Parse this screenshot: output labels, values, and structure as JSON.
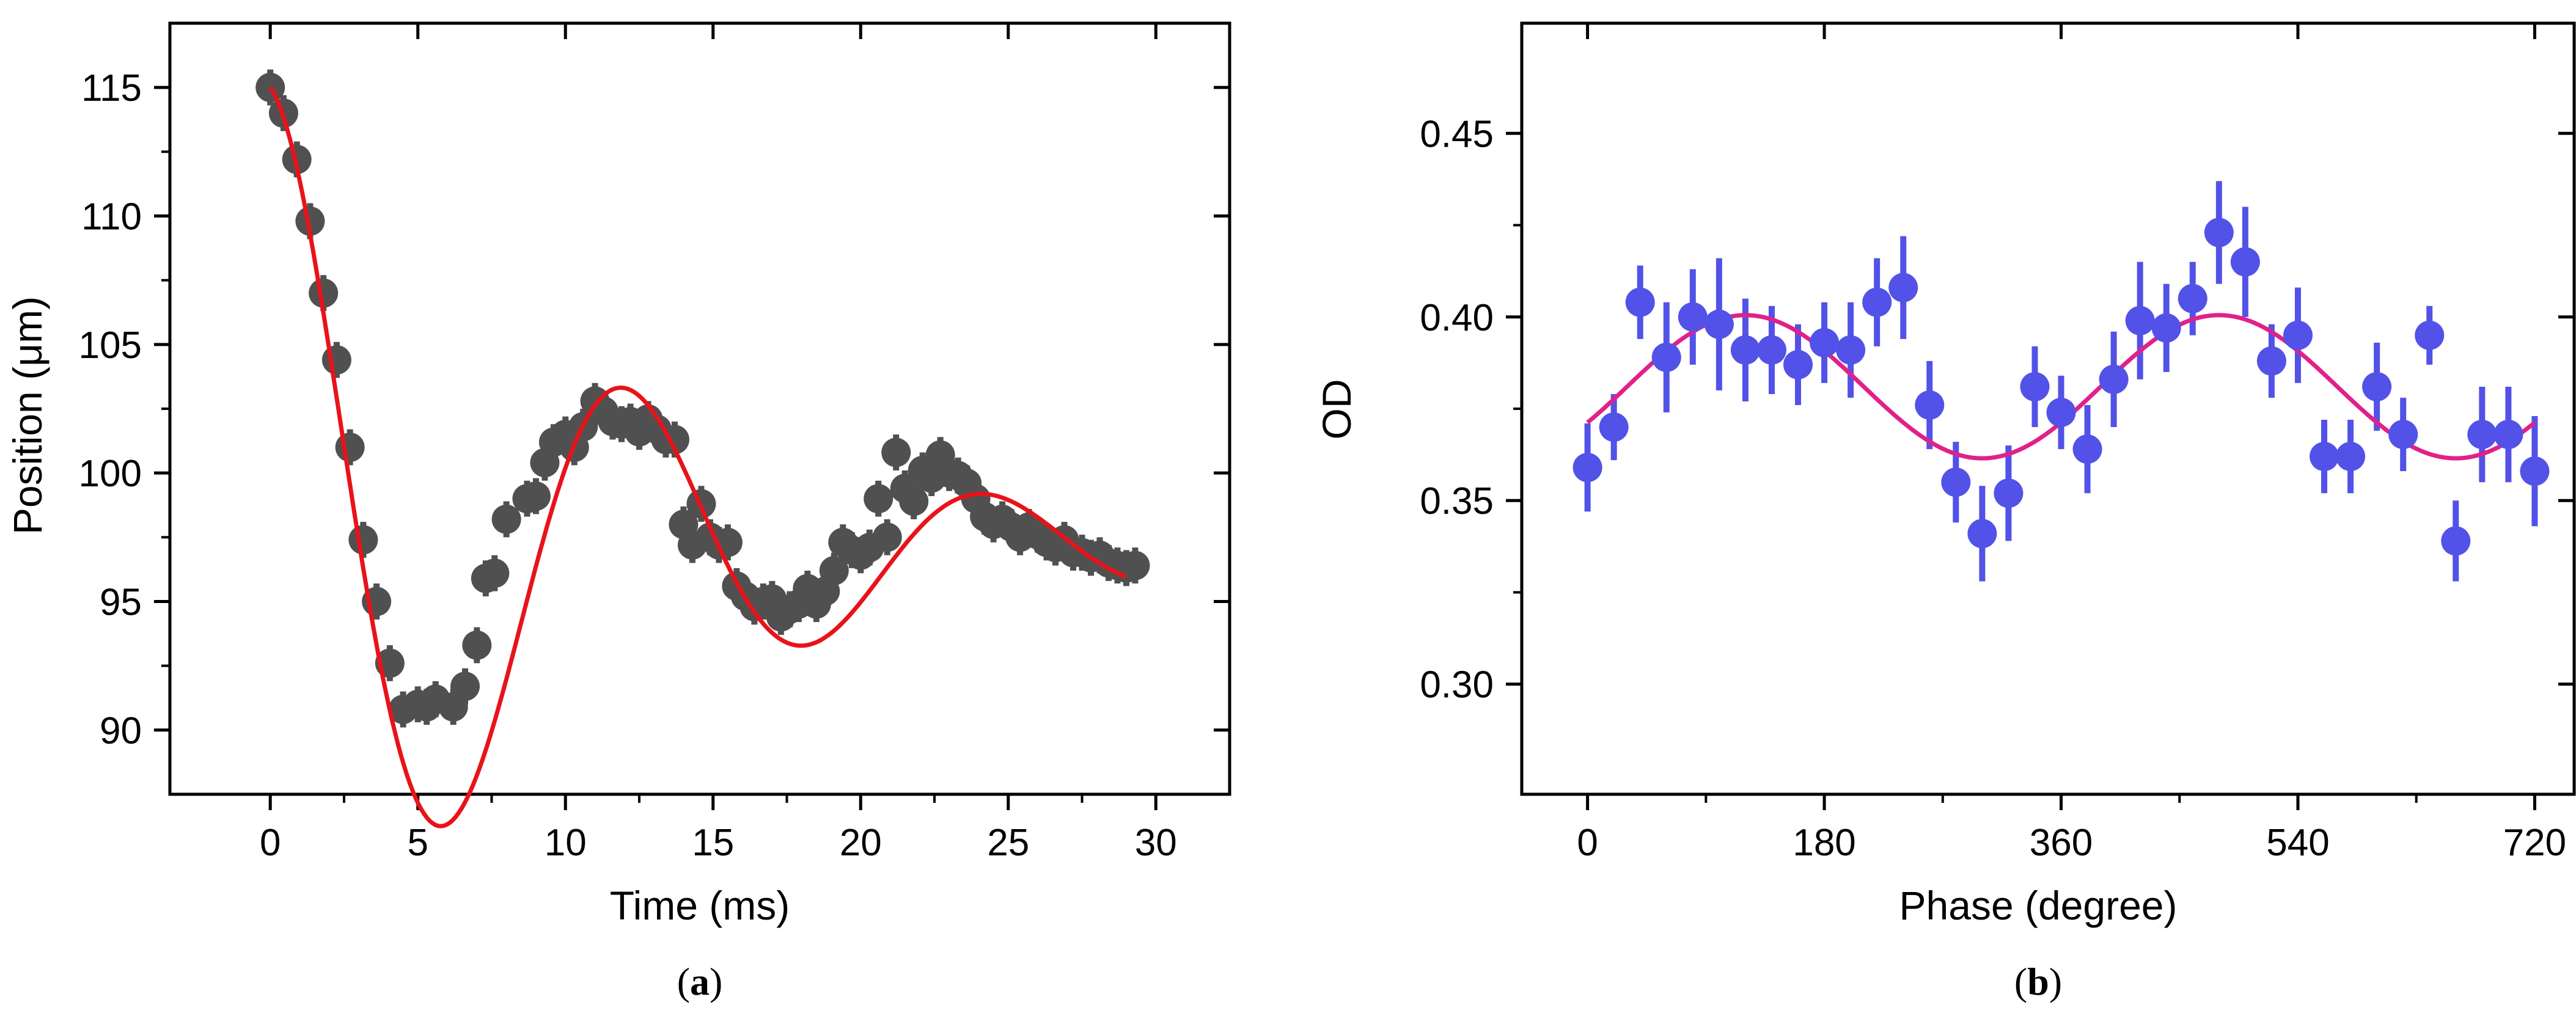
{
  "chart_data": [
    {
      "panel_label": "(a)",
      "panel_letter": "a",
      "type": "scatter",
      "xlabel": "Time (ms)",
      "ylabel": "Position (μm)",
      "xlim": [
        -3.4,
        32.5
      ],
      "ylim": [
        87.5,
        117.5
      ],
      "xticks": [
        0,
        5,
        10,
        15,
        20,
        25,
        30
      ],
      "yticks": [
        90,
        95,
        100,
        105,
        110,
        115
      ],
      "grid": false,
      "colors": {
        "marker": "#505050",
        "fit": "#e8131a"
      },
      "series": [
        {
          "name": "data",
          "x": [
            0,
            0.45,
            0.9,
            1.35,
            1.8,
            2.25,
            2.7,
            3.15,
            3.6,
            4.05,
            4.5,
            5.0,
            5.3,
            5.6,
            6.2,
            6.6,
            7.0,
            7.3,
            7.6,
            8.0,
            8.7,
            9.0,
            9.3,
            9.6,
            10.0,
            10.3,
            10.6,
            11.0,
            11.3,
            11.6,
            11.9,
            12.2,
            12.5,
            12.8,
            13.1,
            13.4,
            13.7,
            14.0,
            14.3,
            14.6,
            14.9,
            15.2,
            15.5,
            15.8,
            16.1,
            16.4,
            16.7,
            17.0,
            17.3,
            17.6,
            17.9,
            18.2,
            18.5,
            18.8,
            19.1,
            19.4,
            19.7,
            20.0,
            20.3,
            20.6,
            20.9,
            21.2,
            21.5,
            21.8,
            22.1,
            22.4,
            22.7,
            23.0,
            23.3,
            23.6,
            23.9,
            24.2,
            24.5,
            24.8,
            25.1,
            25.4,
            25.7,
            26.0,
            26.3,
            26.6,
            26.9,
            27.2,
            27.5,
            27.8,
            28.1,
            28.4,
            28.7,
            29.0,
            29.3
          ],
          "y": [
            115.0,
            114.0,
            112.2,
            109.8,
            107.0,
            104.4,
            101.0,
            97.4,
            95.0,
            92.6,
            90.8,
            91.0,
            90.9,
            91.2,
            90.9,
            91.7,
            93.3,
            95.9,
            96.1,
            98.2,
            99.0,
            99.1,
            100.4,
            101.2,
            101.5,
            101.0,
            101.8,
            102.8,
            102.4,
            102.0,
            101.9,
            102.0,
            101.6,
            102.1,
            101.7,
            101.3,
            101.3,
            98.0,
            97.2,
            98.8,
            97.5,
            97.2,
            97.3,
            95.6,
            95.2,
            94.8,
            95.0,
            95.1,
            94.4,
            94.7,
            94.9,
            95.5,
            94.9,
            95.4,
            96.2,
            97.3,
            97.0,
            96.8,
            97.1,
            99.0,
            97.5,
            100.8,
            99.4,
            98.9,
            100.1,
            99.8,
            100.7,
            100.0,
            99.9,
            99.6,
            99.0,
            98.3,
            98.0,
            98.2,
            97.9,
            97.5,
            97.9,
            97.6,
            97.3,
            97.1,
            97.4,
            96.9,
            96.9,
            96.7,
            96.8,
            96.5,
            96.4,
            96.3,
            96.4
          ]
        },
        {
          "name": "fit",
          "model": "damped-cosine",
          "params": {
            "offset": 97.0,
            "amplitude": 18.0,
            "period_ms": 12.2,
            "tau_ms": 11.5,
            "x_end": 29.0
          }
        }
      ]
    },
    {
      "panel_label": "(b)",
      "panel_letter": "b",
      "type": "scatter",
      "xlabel": "Phase (degree)",
      "ylabel": "OD",
      "xlim": [
        -50,
        750
      ],
      "ylim": [
        0.27,
        0.48
      ],
      "xticks": [
        0,
        180,
        360,
        540,
        720
      ],
      "yticks": [
        0.3,
        0.35,
        0.4,
        0.45
      ],
      "ytick_labels": [
        "0.30",
        "0.35",
        "0.40",
        "0.45"
      ],
      "grid": false,
      "colors": {
        "marker": "#5252e8",
        "fit": "#e0218a"
      },
      "series": [
        {
          "name": "data",
          "x": [
            0,
            20,
            40,
            60,
            80,
            100,
            120,
            140,
            160,
            180,
            200,
            220,
            240,
            260,
            280,
            300,
            320,
            340,
            360,
            380,
            400,
            420,
            440,
            460,
            480,
            500,
            520,
            540,
            560,
            580,
            600,
            620,
            640,
            660,
            680,
            700,
            720
          ],
          "y": [
            0.359,
            0.37,
            0.404,
            0.389,
            0.4,
            0.398,
            0.391,
            0.391,
            0.387,
            0.393,
            0.391,
            0.404,
            0.408,
            0.376,
            0.355,
            0.341,
            0.352,
            0.381,
            0.374,
            0.364,
            0.383,
            0.399,
            0.397,
            0.405,
            0.423,
            0.415,
            0.388,
            0.395,
            0.362,
            0.362,
            0.381,
            0.368,
            0.395,
            0.339,
            0.368,
            0.368,
            0.358
          ],
          "err": [
            0.012,
            0.009,
            0.01,
            0.015,
            0.013,
            0.018,
            0.014,
            0.012,
            0.011,
            0.011,
            0.013,
            0.012,
            0.014,
            0.012,
            0.011,
            0.013,
            0.013,
            0.011,
            0.01,
            0.012,
            0.013,
            0.016,
            0.012,
            0.01,
            0.014,
            0.015,
            0.01,
            0.013,
            0.01,
            0.01,
            0.012,
            0.01,
            0.008,
            0.011,
            0.013,
            0.013,
            0.015
          ]
        },
        {
          "name": "fit",
          "model": "sine",
          "params": {
            "offset": 0.381,
            "amplitude": 0.0195,
            "period_deg": 360,
            "peak_deg": 120,
            "x_start": 0,
            "x_end": 720
          }
        }
      ]
    }
  ]
}
